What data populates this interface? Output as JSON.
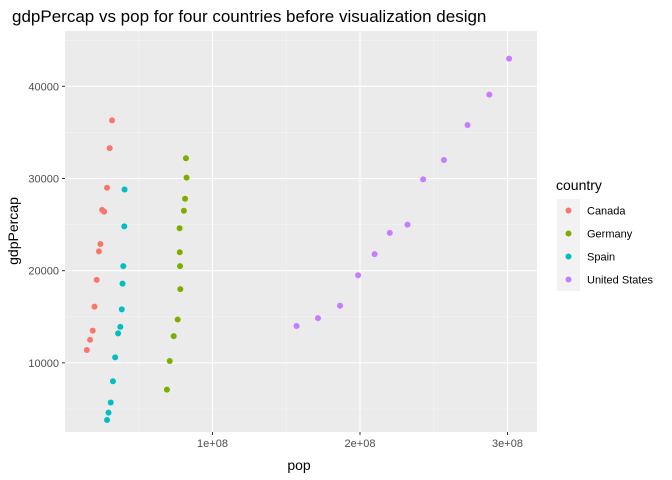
{
  "chart_data": {
    "type": "scatter",
    "title": "gdpPercap vs pop for four countries before visualization design",
    "xlabel": "pop",
    "ylabel": "gdpPercap",
    "xlim": [
      0,
      320000000
    ],
    "ylim": [
      2500,
      46000
    ],
    "x_ticks": [
      {
        "value": 100000000,
        "label": "1e+08"
      },
      {
        "value": 200000000,
        "label": "2e+08"
      },
      {
        "value": 300000000,
        "label": "3e+08"
      }
    ],
    "y_ticks": [
      {
        "value": 10000,
        "label": "10000"
      },
      {
        "value": 20000,
        "label": "20000"
      },
      {
        "value": 30000,
        "label": "30000"
      },
      {
        "value": 40000,
        "label": "40000"
      }
    ],
    "grid": true,
    "legend": {
      "title": "country",
      "position": "right"
    },
    "series": [
      {
        "name": "Canada",
        "color": "#F8766D",
        "points": [
          {
            "x": 14800000,
            "y": 11400
          },
          {
            "x": 17000000,
            "y": 12500
          },
          {
            "x": 18800000,
            "y": 13500
          },
          {
            "x": 20000000,
            "y": 16100
          },
          {
            "x": 21500000,
            "y": 19000
          },
          {
            "x": 23000000,
            "y": 22100
          },
          {
            "x": 24000000,
            "y": 22900
          },
          {
            "x": 25200000,
            "y": 26600
          },
          {
            "x": 26500000,
            "y": 26400
          },
          {
            "x": 28500000,
            "y": 29000
          },
          {
            "x": 30300000,
            "y": 33300
          },
          {
            "x": 31900000,
            "y": 36300
          }
        ]
      },
      {
        "name": "Germany",
        "color": "#7CAE00",
        "points": [
          {
            "x": 69100000,
            "y": 7100
          },
          {
            "x": 71000000,
            "y": 10200
          },
          {
            "x": 73700000,
            "y": 12900
          },
          {
            "x": 76400000,
            "y": 14700
          },
          {
            "x": 78200000,
            "y": 18000
          },
          {
            "x": 78000000,
            "y": 20500
          },
          {
            "x": 77800000,
            "y": 22000
          },
          {
            "x": 77700000,
            "y": 24600
          },
          {
            "x": 80600000,
            "y": 26500
          },
          {
            "x": 81400000,
            "y": 27800
          },
          {
            "x": 82400000,
            "y": 30100
          },
          {
            "x": 82000000,
            "y": 32200
          }
        ]
      },
      {
        "name": "Spain",
        "color": "#00BFC4",
        "points": [
          {
            "x": 28500000,
            "y": 3800
          },
          {
            "x": 29500000,
            "y": 4600
          },
          {
            "x": 31000000,
            "y": 5700
          },
          {
            "x": 32500000,
            "y": 8000
          },
          {
            "x": 34000000,
            "y": 10600
          },
          {
            "x": 36000000,
            "y": 13200
          },
          {
            "x": 37500000,
            "y": 13900
          },
          {
            "x": 38500000,
            "y": 15800
          },
          {
            "x": 39000000,
            "y": 18600
          },
          {
            "x": 39500000,
            "y": 20500
          },
          {
            "x": 40200000,
            "y": 24800
          },
          {
            "x": 40400000,
            "y": 28800
          }
        ]
      },
      {
        "name": "United States",
        "color": "#C77CFF",
        "points": [
          {
            "x": 157000000,
            "y": 14000
          },
          {
            "x": 171500000,
            "y": 14850
          },
          {
            "x": 186500000,
            "y": 16200
          },
          {
            "x": 198700000,
            "y": 19500
          },
          {
            "x": 209900000,
            "y": 21800
          },
          {
            "x": 220200000,
            "y": 24100
          },
          {
            "x": 232200000,
            "y": 25000
          },
          {
            "x": 242800000,
            "y": 29900
          },
          {
            "x": 256900000,
            "y": 32000
          },
          {
            "x": 272900000,
            "y": 35800
          },
          {
            "x": 287700000,
            "y": 39100
          },
          {
            "x": 301100000,
            "y": 43000
          }
        ]
      }
    ]
  }
}
